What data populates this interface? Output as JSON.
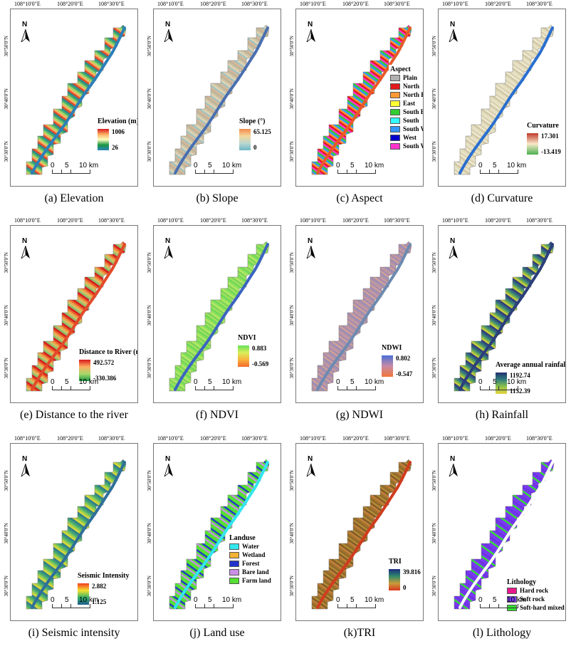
{
  "coords": {
    "top": [
      "108°10'0\"E",
      "108°20'0\"E",
      "108°30'0\"E"
    ],
    "left": [
      "30°50'0\"N",
      "30°40'0\"N",
      "30°30'0\"N"
    ]
  },
  "north_label": "N",
  "scale": {
    "labels": [
      "0",
      "5",
      "10 km"
    ]
  },
  "panels": [
    {
      "id": "elevation",
      "caption": "(a) Elevation",
      "legend_title": "Elevation (m)",
      "max": "1006",
      "min": "26",
      "ramp_colors": [
        "#d7191c",
        "#fdae61",
        "#ffffbf",
        "#1a9641",
        "#2b83ba"
      ],
      "map_colors": [
        "#2b8a8a",
        "#4fb36b",
        "#a6d96a",
        "#fdae61",
        "#e04a2a"
      ]
    },
    {
      "id": "slope",
      "caption": "(b) Slope",
      "legend_title": "Slope (°)",
      "max": "65.125",
      "min": "0",
      "ramp_colors": [
        "#f08a4b",
        "#f5d79a",
        "#b9d7cf",
        "#6fb7c8"
      ],
      "map_colors": [
        "#cfc3a4",
        "#e0d4b5",
        "#9fc3c0",
        "#d9b898",
        "#bdb39a"
      ]
    },
    {
      "id": "aspect",
      "caption": "(c) Aspect",
      "legend_title": "Aspect",
      "categories": [
        {
          "label": "Plain",
          "color": "#b0b0b0"
        },
        {
          "label": "North",
          "color": "#e41a1c"
        },
        {
          "label": "North East",
          "color": "#ff9933"
        },
        {
          "label": "East",
          "color": "#ffff33"
        },
        {
          "label": "South East",
          "color": "#33cc33"
        },
        {
          "label": "South",
          "color": "#33ffff"
        },
        {
          "label": "South West",
          "color": "#3399ff"
        },
        {
          "label": "West",
          "color": "#0000cc"
        },
        {
          "label": "South West",
          "color": "#ff33cc"
        }
      ],
      "map_colors": [
        "#ff33cc",
        "#33cc33",
        "#3399ff",
        "#ff9933",
        "#e41a1c"
      ]
    },
    {
      "id": "curvature",
      "caption": "(d) Curvature",
      "legend_title": "Curvature",
      "max": "17.301",
      "min": "-13.419",
      "ramp_colors": [
        "#c0392b",
        "#f7e9c8",
        "#4caf50"
      ],
      "map_colors": [
        "#e9e3c9",
        "#d8d0ae",
        "#efe9d3",
        "#cfc6a2",
        "#e3dcbd"
      ]
    },
    {
      "id": "distance-river",
      "caption": "(e) Distance to the river",
      "legend_title": "Distance to River (m)",
      "max": "492.572",
      "min": "-330.386",
      "ramp_colors": [
        "#d7191c",
        "#fdae61",
        "#a6d96a",
        "#1a9641"
      ],
      "map_colors": [
        "#e8602c",
        "#f2a24b",
        "#c9c46c",
        "#8cbf6a",
        "#d7191c"
      ]
    },
    {
      "id": "ndvi",
      "caption": "(f) NDVI",
      "legend_title": "NDVI",
      "max": "0.883",
      "min": "-0.569",
      "ramp_colors": [
        "#66e05a",
        "#d9ef5a",
        "#f9b33e",
        "#f26a2c"
      ],
      "map_colors": [
        "#6cd957",
        "#8fe05d",
        "#b5e865",
        "#79d458",
        "#a2e060"
      ]
    },
    {
      "id": "ndwi",
      "caption": "(g) NDWI",
      "legend_title": "NDWI",
      "max": "0.802",
      "min": "-0.547",
      "ramp_colors": [
        "#4b6fd6",
        "#c78aa5",
        "#f2763a"
      ],
      "map_colors": [
        "#b293a6",
        "#c49aa0",
        "#a58bb0",
        "#d1a296",
        "#9c8db7"
      ]
    },
    {
      "id": "rainfall",
      "caption": "(h) Rainfall",
      "legend_title": "Average annual rainfall (mm)",
      "max": "1192.74",
      "min": "1132.39",
      "ramp_colors": [
        "#24306e",
        "#2f7f7c",
        "#8ec34a",
        "#e6d33c"
      ],
      "map_colors": [
        "#2d3f7a",
        "#34627e",
        "#3f8a74",
        "#78b24d",
        "#c9cc3f"
      ]
    },
    {
      "id": "seismic",
      "caption": "(i) Seismic intensity",
      "legend_title": "Seismic Intensity",
      "max": "2.882",
      "min": "1.125",
      "ramp_colors": [
        "#f23b1f",
        "#f5e12f",
        "#33b26a",
        "#1d5a8c"
      ],
      "map_colors": [
        "#2f7f8a",
        "#3d9a7a",
        "#59b868",
        "#9ccf4e",
        "#d8d73b"
      ]
    },
    {
      "id": "landuse",
      "caption": "(j) Land use",
      "legend_title": "Landuse",
      "categories": [
        {
          "label": "Water",
          "color": "#33e6f0"
        },
        {
          "label": "Wetland",
          "color": "#f2b233"
        },
        {
          "label": "Forest",
          "color": "#2233cc"
        },
        {
          "label": "Bare land",
          "color": "#c98ee6"
        },
        {
          "label": "Farm land",
          "color": "#55e033"
        }
      ],
      "map_colors": [
        "#55e033",
        "#2233cc",
        "#55e033",
        "#c98ee6",
        "#55e033"
      ]
    },
    {
      "id": "tri",
      "caption": "(k)TRI",
      "legend_title": "TRI",
      "max": "39.816",
      "min": "0",
      "ramp_colors": [
        "#1b2a80",
        "#2f8a6a",
        "#c99a3a",
        "#d9381e"
      ],
      "map_colors": [
        "#a5732e",
        "#8c6a2a",
        "#b88a35",
        "#7d5c27",
        "#c4803a"
      ]
    },
    {
      "id": "lithology",
      "caption": "(l) Lithology",
      "legend_title": "Lithology",
      "categories": [
        {
          "label": "Hard rock",
          "color": "#e6198c"
        },
        {
          "label": "Soft rock",
          "color": "#7a3af0"
        },
        {
          "label": "Soft-hard mixed rock",
          "color": "#33e033"
        }
      ],
      "map_colors": [
        "#7a3af0",
        "#7a3af0",
        "#6a33e0",
        "#7a3af0",
        "#33e033"
      ]
    }
  ]
}
